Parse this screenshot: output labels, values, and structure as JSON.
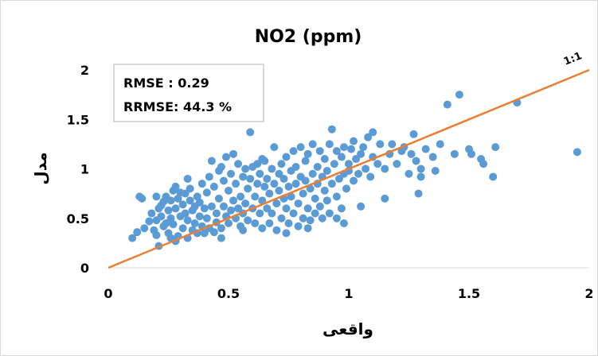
{
  "chart_data": {
    "type": "scatter",
    "title": "NO2 (ppm)",
    "xlabel": "واقعی",
    "ylabel": "مدل",
    "xlim": [
      0,
      2
    ],
    "ylim": [
      0,
      2
    ],
    "x_ticks": [
      "0",
      "0.5",
      "1",
      "1.5",
      "2"
    ],
    "y_ticks": [
      "0",
      "0.5",
      "1",
      "1.5",
      "2"
    ],
    "grid": false,
    "legend": "none",
    "reference_line": {
      "label": "1:1",
      "from": [
        0,
        0
      ],
      "to": [
        2,
        2
      ],
      "color": "#ED7D31"
    },
    "stats": [
      "RMSE : 0.29",
      "RRMSE: 44.3 %"
    ],
    "point_color": "#5B9BD5",
    "points": [
      [
        0.1,
        0.3
      ],
      [
        0.12,
        0.36
      ],
      [
        0.13,
        0.72
      ],
      [
        0.14,
        0.7
      ],
      [
        0.15,
        0.4
      ],
      [
        0.17,
        0.47
      ],
      [
        0.18,
        0.55
      ],
      [
        0.19,
        0.38
      ],
      [
        0.2,
        0.48
      ],
      [
        0.2,
        0.33
      ],
      [
        0.21,
        0.22
      ],
      [
        0.21,
        0.6
      ],
      [
        0.22,
        0.52
      ],
      [
        0.22,
        0.63
      ],
      [
        0.23,
        0.42
      ],
      [
        0.23,
        0.67
      ],
      [
        0.24,
        0.45
      ],
      [
        0.24,
        0.72
      ],
      [
        0.25,
        0.35
      ],
      [
        0.25,
        0.58
      ],
      [
        0.26,
        0.68
      ],
      [
        0.26,
        0.5
      ],
      [
        0.27,
        0.78
      ],
      [
        0.27,
        0.44
      ],
      [
        0.28,
        0.82
      ],
      [
        0.28,
        0.6
      ],
      [
        0.28,
        0.27
      ],
      [
        0.29,
        0.7
      ],
      [
        0.29,
        0.32
      ],
      [
        0.3,
        0.52
      ],
      [
        0.3,
        0.76
      ],
      [
        0.31,
        0.4
      ],
      [
        0.31,
        0.64
      ],
      [
        0.32,
        0.55
      ],
      [
        0.32,
        0.75
      ],
      [
        0.33,
        0.3
      ],
      [
        0.33,
        0.48
      ],
      [
        0.34,
        0.68
      ],
      [
        0.34,
        0.8
      ],
      [
        0.35,
        0.38
      ],
      [
        0.35,
        0.58
      ],
      [
        0.36,
        0.62
      ],
      [
        0.36,
        0.45
      ],
      [
        0.37,
        0.72
      ],
      [
        0.37,
        0.35
      ],
      [
        0.38,
        0.52
      ],
      [
        0.38,
        0.66
      ],
      [
        0.39,
        0.85
      ],
      [
        0.39,
        0.42
      ],
      [
        0.4,
        0.6
      ],
      [
        0.4,
        0.35
      ],
      [
        0.41,
        0.76
      ],
      [
        0.41,
        0.5
      ],
      [
        0.42,
        0.92
      ],
      [
        0.42,
        0.4
      ],
      [
        0.43,
        1.08
      ],
      [
        0.43,
        0.62
      ],
      [
        0.44,
        0.36
      ],
      [
        0.44,
        0.82
      ],
      [
        0.45,
        0.55
      ],
      [
        0.45,
        0.46
      ],
      [
        0.46,
        0.7
      ],
      [
        0.46,
        0.98
      ],
      [
        0.47,
        0.4
      ],
      [
        0.47,
        1.02
      ],
      [
        0.48,
        0.62
      ],
      [
        0.48,
        0.88
      ],
      [
        0.49,
        0.52
      ],
      [
        0.49,
        1.12
      ],
      [
        0.5,
        0.45
      ],
      [
        0.5,
        0.78
      ],
      [
        0.51,
        0.58
      ],
      [
        0.51,
        0.95
      ],
      [
        0.52,
        0.68
      ],
      [
        0.52,
        1.15
      ],
      [
        0.53,
        0.5
      ],
      [
        0.53,
        0.85
      ],
      [
        0.54,
        0.6
      ],
      [
        0.54,
        1.05
      ],
      [
        0.55,
        0.42
      ],
      [
        0.55,
        0.72
      ],
      [
        0.56,
        0.92
      ],
      [
        0.56,
        0.55
      ],
      [
        0.57,
        1.0
      ],
      [
        0.57,
        0.65
      ],
      [
        0.58,
        0.8
      ],
      [
        0.58,
        0.48
      ],
      [
        0.59,
        1.37
      ],
      [
        0.59,
        0.9
      ],
      [
        0.6,
        0.6
      ],
      [
        0.6,
        1.02
      ],
      [
        0.61,
        0.72
      ],
      [
        0.61,
        0.45
      ],
      [
        0.62,
        0.85
      ],
      [
        0.62,
        1.05
      ],
      [
        0.63,
        0.55
      ],
      [
        0.63,
        0.95
      ],
      [
        0.64,
        0.68
      ],
      [
        0.64,
        0.4
      ],
      [
        0.65,
        0.82
      ],
      [
        0.65,
        1.08
      ],
      [
        0.66,
        0.6
      ],
      [
        0.66,
        0.9
      ],
      [
        0.67,
        0.45
      ],
      [
        0.67,
        0.75
      ],
      [
        0.68,
        1.0
      ],
      [
        0.68,
        0.55
      ],
      [
        0.69,
        0.85
      ],
      [
        0.69,
        1.22
      ],
      [
        0.7,
        0.65
      ],
      [
        0.7,
        0.38
      ],
      [
        0.71,
        0.95
      ],
      [
        0.71,
        0.78
      ],
      [
        0.72,
        1.05
      ],
      [
        0.72,
        0.5
      ],
      [
        0.73,
        0.7
      ],
      [
        0.73,
        0.9
      ],
      [
        0.74,
        1.12
      ],
      [
        0.74,
        0.6
      ],
      [
        0.75,
        0.82
      ],
      [
        0.75,
        0.45
      ],
      [
        0.76,
        0.98
      ],
      [
        0.76,
        0.72
      ],
      [
        0.77,
        1.18
      ],
      [
        0.77,
        0.55
      ],
      [
        0.78,
        0.85
      ],
      [
        0.78,
        1.02
      ],
      [
        0.79,
        0.65
      ],
      [
        0.79,
        0.42
      ],
      [
        0.8,
        0.92
      ],
      [
        0.8,
        1.22
      ],
      [
        0.81,
        0.75
      ],
      [
        0.81,
        0.5
      ],
      [
        0.82,
        1.08
      ],
      [
        0.82,
        0.88
      ],
      [
        0.83,
        0.6
      ],
      [
        0.83,
        1.15
      ],
      [
        0.84,
        0.8
      ],
      [
        0.84,
        0.48
      ],
      [
        0.85,
        0.95
      ],
      [
        0.85,
        1.25
      ],
      [
        0.86,
        0.7
      ],
      [
        0.86,
        0.55
      ],
      [
        0.87,
        1.02
      ],
      [
        0.87,
        0.85
      ],
      [
        0.88,
        0.62
      ],
      [
        0.88,
        1.18
      ],
      [
        0.89,
        0.92
      ],
      [
        0.89,
        0.5
      ],
      [
        0.9,
        0.78
      ],
      [
        0.9,
        1.1
      ],
      [
        0.91,
        0.68
      ],
      [
        0.91,
        0.98
      ],
      [
        0.92,
        1.25
      ],
      [
        0.92,
        0.55
      ],
      [
        0.93,
        0.85
      ],
      [
        0.93,
        1.4
      ],
      [
        0.94,
        1.05
      ],
      [
        0.95,
        0.72
      ],
      [
        0.95,
        1.18
      ],
      [
        0.96,
        0.9
      ],
      [
        0.97,
        0.6
      ],
      [
        0.97,
        1.12
      ],
      [
        0.98,
        0.95
      ],
      [
        0.98,
        1.22
      ],
      [
        0.99,
        0.8
      ],
      [
        1.0,
        1.05
      ],
      [
        1.0,
        0.98
      ],
      [
        1.01,
        1.2
      ],
      [
        1.02,
        0.88
      ],
      [
        1.02,
        1.28
      ],
      [
        1.03,
        1.1
      ],
      [
        1.04,
        0.95
      ],
      [
        1.05,
        1.15
      ],
      [
        1.06,
        1.22
      ],
      [
        1.07,
        1.0
      ],
      [
        1.08,
        1.32
      ],
      [
        1.09,
        0.92
      ],
      [
        1.1,
        1.12
      ],
      [
        1.1,
        1.37
      ],
      [
        1.12,
        1.05
      ],
      [
        1.13,
        1.25
      ],
      [
        1.15,
        0.7
      ],
      [
        1.15,
        1.0
      ],
      [
        1.17,
        1.15
      ],
      [
        1.18,
        1.25
      ],
      [
        1.2,
        1.05
      ],
      [
        1.22,
        1.18
      ],
      [
        1.23,
        1.22
      ],
      [
        1.25,
        0.95
      ],
      [
        1.26,
        1.15
      ],
      [
        1.27,
        1.35
      ],
      [
        1.28,
        1.08
      ],
      [
        1.29,
        0.75
      ],
      [
        1.3,
        0.92
      ],
      [
        1.3,
        1.0
      ],
      [
        1.32,
        1.2
      ],
      [
        1.35,
        1.12
      ],
      [
        1.36,
        0.98
      ],
      [
        1.38,
        1.25
      ],
      [
        1.41,
        1.65
      ],
      [
        1.44,
        1.15
      ],
      [
        1.46,
        1.75
      ],
      [
        1.5,
        1.2
      ],
      [
        1.51,
        1.15
      ],
      [
        1.55,
        1.1
      ],
      [
        1.56,
        1.05
      ],
      [
        1.6,
        0.92
      ],
      [
        1.61,
        1.22
      ],
      [
        1.7,
        1.67
      ],
      [
        1.95,
        1.17
      ],
      [
        0.2,
        0.72
      ],
      [
        0.26,
        0.3
      ],
      [
        0.33,
        0.9
      ],
      [
        0.47,
        0.3
      ],
      [
        0.56,
        0.38
      ],
      [
        0.64,
        1.1
      ],
      [
        0.74,
        0.35
      ],
      [
        0.83,
        0.4
      ],
      [
        0.95,
        0.5
      ],
      [
        1.05,
        0.62
      ],
      [
        0.98,
        0.45
      ]
    ]
  }
}
